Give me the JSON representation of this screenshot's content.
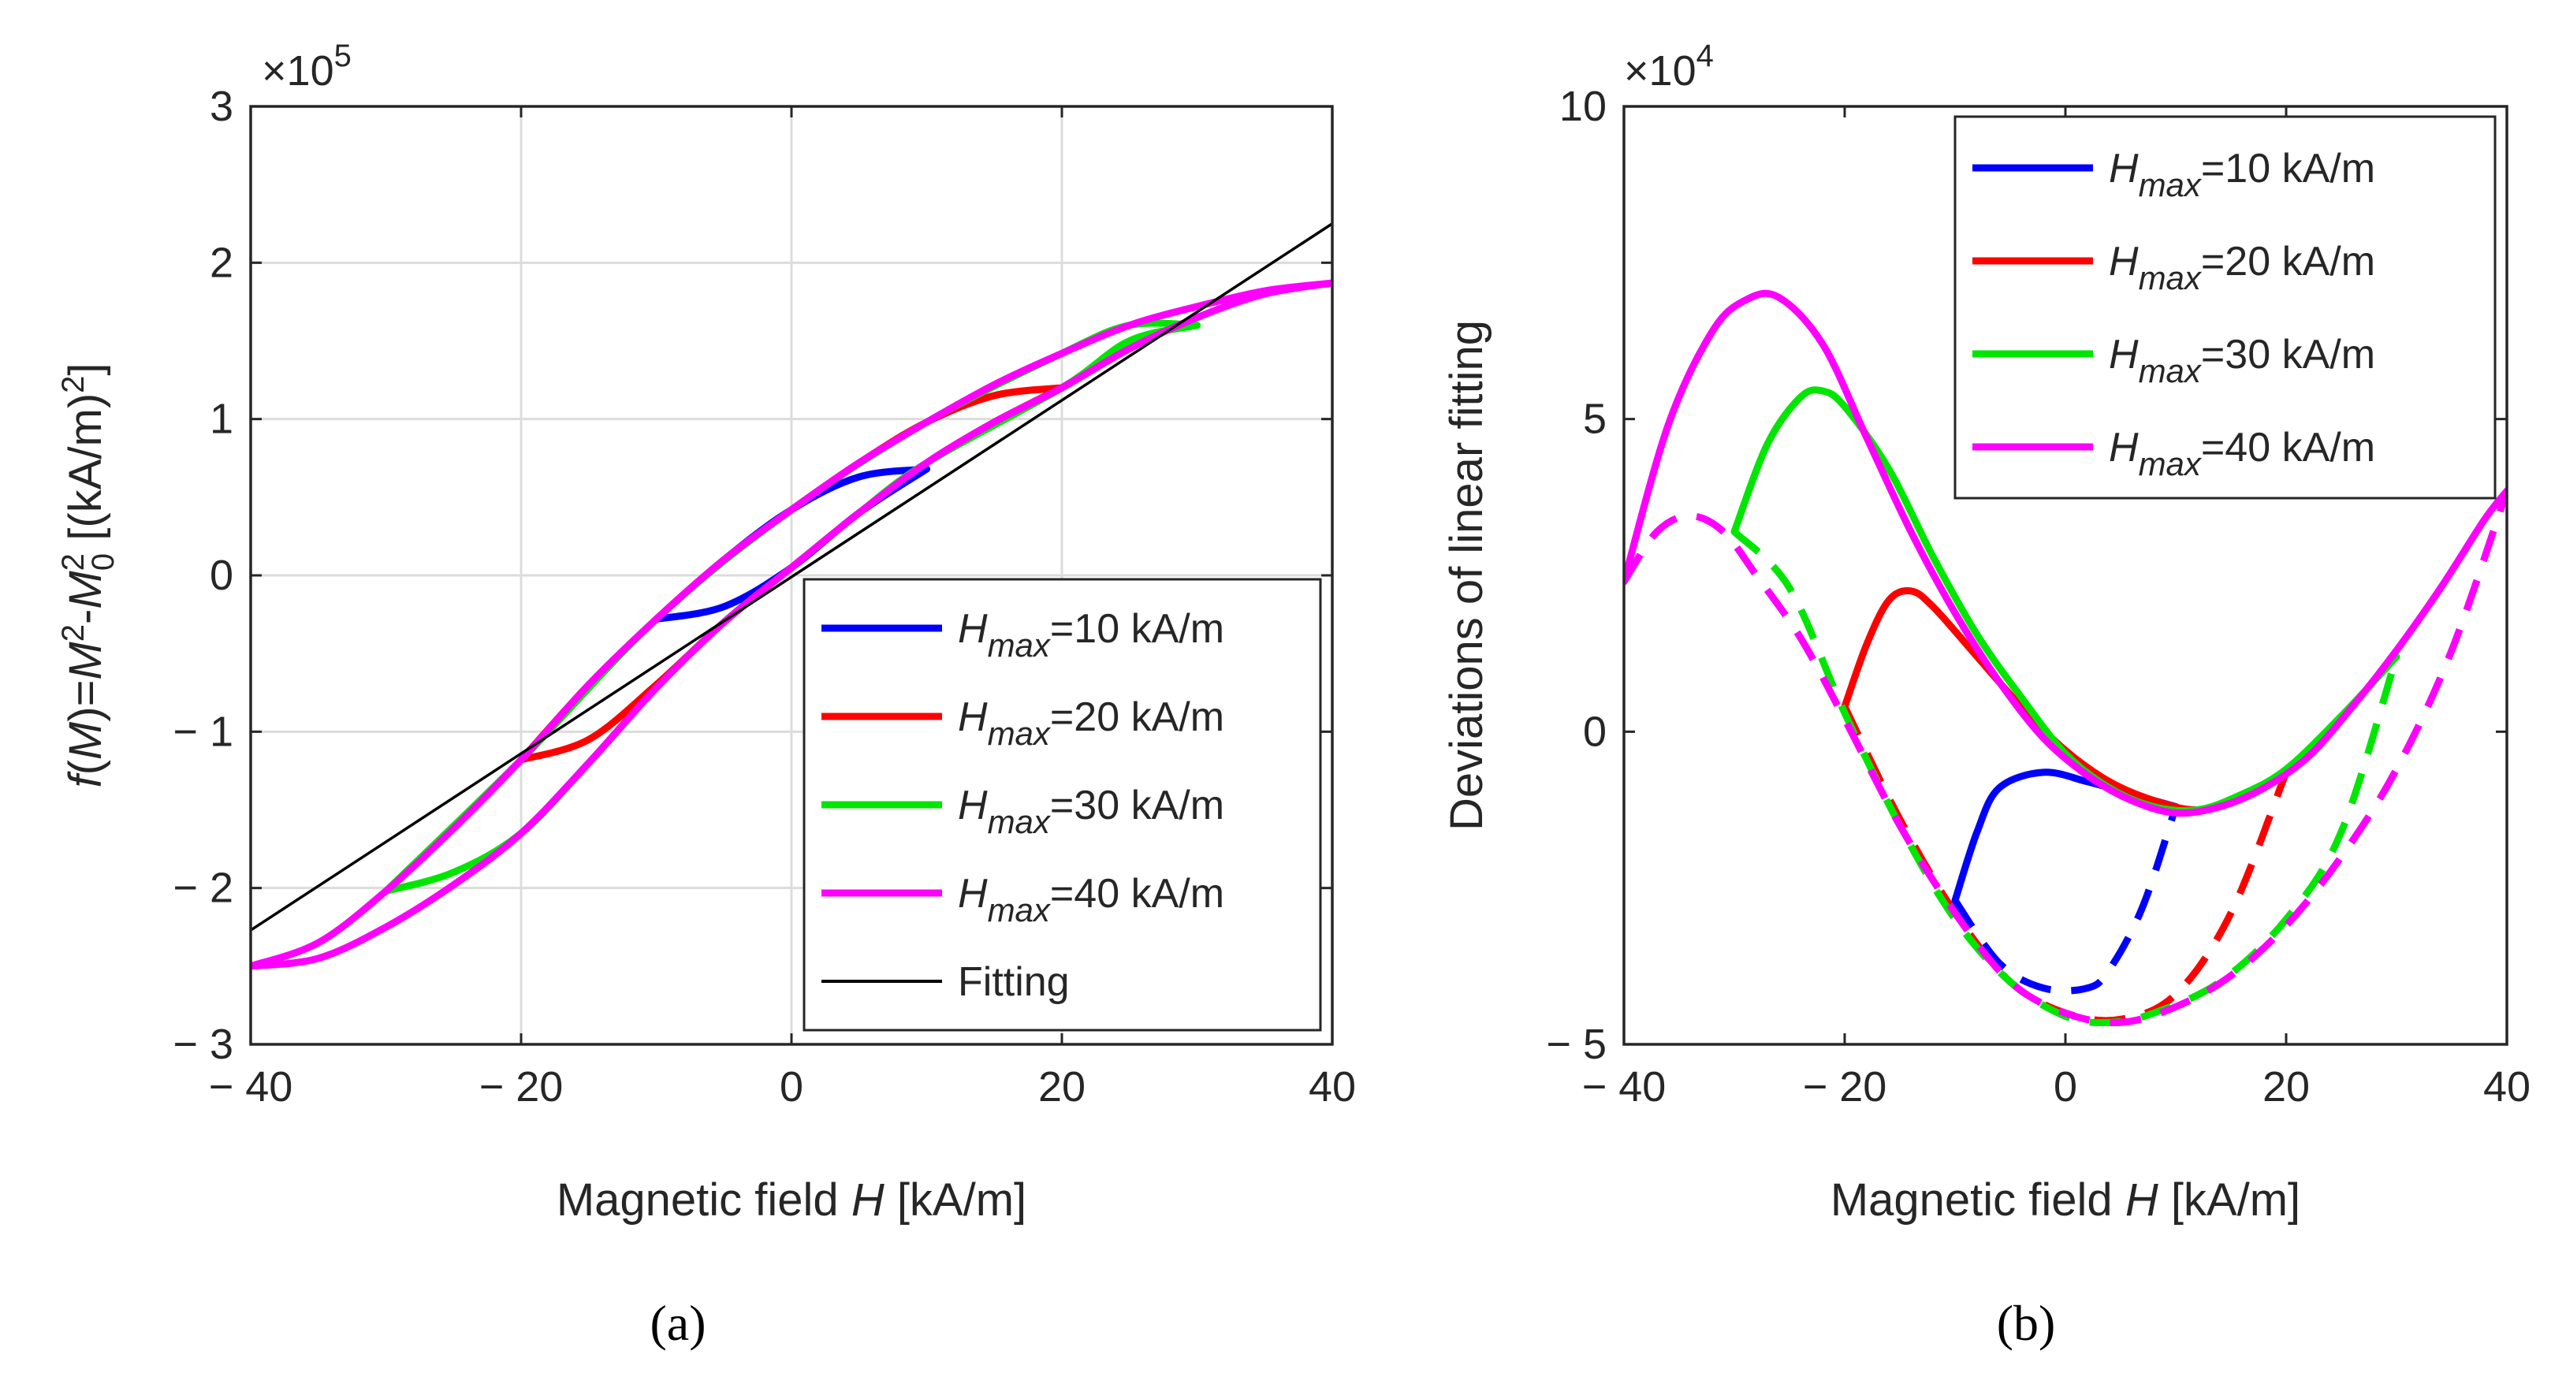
{
  "chart_data": [
    {
      "panel": "(a)",
      "type": "line",
      "xlabel": "Magnetic field H [kA/m]",
      "xlabel_parts": [
        "Magnetic field ",
        "H",
        " [kA/m]"
      ],
      "ylabel": "f(M)=M²-M₀² [(kA/m)²]",
      "xlim": [
        -40,
        40
      ],
      "ylim": [
        -3,
        3
      ],
      "y_scale_factor": "×10^5",
      "y_exponent_base": "×10",
      "y_exponent": "5",
      "xticks": [
        -40,
        -20,
        0,
        20,
        40
      ],
      "xtick_labels": [
        "− 40",
        "− 20",
        "0",
        "20",
        "40"
      ],
      "yticks": [
        -3,
        -2,
        -1,
        0,
        1,
        2,
        3
      ],
      "ytick_labels": [
        "− 3",
        "− 2",
        "− 1",
        "0",
        "1",
        "2",
        "3"
      ],
      "grid": true,
      "legend_position": "bottom-right",
      "series": [
        {
          "name": "Hmax=10 kA/m",
          "name_parts": [
            "H",
            "max",
            "=10 kA/m"
          ],
          "color": "#0000ff",
          "ascending": [
            [
              -10,
              -0.28
            ],
            [
              -5,
              -0.2
            ],
            [
              0,
              0.05
            ],
            [
              5,
              0.4
            ],
            [
              10,
              0.68
            ]
          ],
          "descending": [
            [
              10,
              0.68
            ],
            [
              5,
              0.63
            ],
            [
              0,
              0.42
            ],
            [
              -5,
              0.1
            ],
            [
              -10,
              -0.28
            ]
          ]
        },
        {
          "name": "Hmax=20 kA/m",
          "name_parts": [
            "H",
            "max",
            "=20 kA/m"
          ],
          "color": "#ff0000",
          "ascending": [
            [
              -20,
              -1.18
            ],
            [
              -15,
              -1.05
            ],
            [
              -10,
              -0.7
            ],
            [
              -5,
              -0.3
            ],
            [
              0,
              0.05
            ],
            [
              5,
              0.4
            ],
            [
              10,
              0.72
            ],
            [
              15,
              0.98
            ],
            [
              20,
              1.2
            ]
          ],
          "descending": [
            [
              20,
              1.2
            ],
            [
              15,
              1.15
            ],
            [
              10,
              0.98
            ],
            [
              5,
              0.72
            ],
            [
              0,
              0.42
            ],
            [
              -5,
              0.1
            ],
            [
              -10,
              -0.28
            ],
            [
              -15,
              -0.7
            ],
            [
              -20,
              -1.18
            ]
          ]
        },
        {
          "name": "Hmax=30 kA/m",
          "name_parts": [
            "H",
            "max",
            "=30 kA/m"
          ],
          "color": "#00e600",
          "ascending": [
            [
              -30,
              -2.02
            ],
            [
              -25,
              -1.9
            ],
            [
              -20,
              -1.65
            ],
            [
              -15,
              -1.2
            ],
            [
              -10,
              -0.72
            ],
            [
              -5,
              -0.3
            ],
            [
              0,
              0.05
            ],
            [
              5,
              0.4
            ],
            [
              10,
              0.72
            ],
            [
              20,
              1.2
            ],
            [
              25,
              1.5
            ],
            [
              30,
              1.6
            ]
          ],
          "descending": [
            [
              30,
              1.6
            ],
            [
              25,
              1.6
            ],
            [
              20,
              1.42
            ],
            [
              10,
              0.98
            ],
            [
              0,
              0.42
            ],
            [
              -10,
              -0.28
            ],
            [
              -20,
              -1.18
            ],
            [
              -30,
              -2.02
            ]
          ]
        },
        {
          "name": "Hmax=40 kA/m",
          "name_parts": [
            "H",
            "max",
            "=40 kA/m"
          ],
          "color": "#ff00ff",
          "ascending": [
            [
              -40,
              -2.5
            ],
            [
              -35,
              -2.45
            ],
            [
              -30,
              -2.25
            ],
            [
              -25,
              -1.98
            ],
            [
              -20,
              -1.65
            ],
            [
              -15,
              -1.2
            ],
            [
              -10,
              -0.72
            ],
            [
              -5,
              -0.3
            ],
            [
              0,
              0.05
            ],
            [
              5,
              0.4
            ],
            [
              10,
              0.72
            ],
            [
              15,
              0.98
            ],
            [
              20,
              1.2
            ],
            [
              25,
              1.45
            ],
            [
              30,
              1.65
            ],
            [
              35,
              1.8
            ],
            [
              40,
              1.87
            ]
          ],
          "descending": [
            [
              40,
              1.87
            ],
            [
              35,
              1.82
            ],
            [
              30,
              1.72
            ],
            [
              25,
              1.6
            ],
            [
              20,
              1.42
            ],
            [
              15,
              1.22
            ],
            [
              10,
              0.98
            ],
            [
              5,
              0.72
            ],
            [
              0,
              0.42
            ],
            [
              -5,
              0.1
            ],
            [
              -10,
              -0.28
            ],
            [
              -15,
              -0.7
            ],
            [
              -20,
              -1.18
            ],
            [
              -25,
              -1.62
            ],
            [
              -30,
              -2.02
            ],
            [
              -35,
              -2.35
            ],
            [
              -40,
              -2.5
            ]
          ]
        },
        {
          "name": "Fitting",
          "color": "#000000",
          "line": [
            [
              -40,
              -2.27
            ],
            [
              40,
              2.25
            ]
          ]
        }
      ]
    },
    {
      "panel": "(b)",
      "type": "line",
      "xlabel": "Magnetic field H [kA/m]",
      "xlabel_parts": [
        "Magnetic field ",
        "H",
        " [kA/m]"
      ],
      "ylabel": "Deviations of linear fitting",
      "xlim": [
        -40,
        40
      ],
      "ylim": [
        -5,
        10
      ],
      "y_scale_factor": "×10^4",
      "y_exponent_base": "×10",
      "y_exponent": "4",
      "xticks": [
        -40,
        -20,
        0,
        20,
        40
      ],
      "xtick_labels": [
        "− 40",
        "− 20",
        "0",
        "20",
        "40"
      ],
      "yticks": [
        -5,
        0,
        5,
        10
      ],
      "ytick_labels": [
        "− 5",
        "0",
        "5",
        "10"
      ],
      "grid": false,
      "legend_position": "top-right",
      "series": [
        {
          "name": "Hmax=10 kA/m",
          "name_parts": [
            "H",
            "max",
            "=10 kA/m"
          ],
          "color": "#0000ff",
          "solid": [
            [
              -10,
              -2.7
            ],
            [
              -8,
              -1.6
            ],
            [
              -6,
              -0.9
            ],
            [
              -2,
              -0.65
            ],
            [
              2,
              -0.8
            ],
            [
              6,
              -1.0
            ],
            [
              10,
              -1.2
            ]
          ],
          "dashed": [
            [
              -10,
              -2.7
            ],
            [
              -6,
              -3.7
            ],
            [
              -2,
              -4.1
            ],
            [
              2,
              -4.1
            ],
            [
              4,
              -3.8
            ],
            [
              7,
              -2.8
            ],
            [
              10,
              -1.2
            ]
          ]
        },
        {
          "name": "Hmax=20 kA/m",
          "name_parts": [
            "H",
            "max",
            "=20 kA/m"
          ],
          "color": "#ff0000",
          "solid": [
            [
              -20,
              0.4
            ],
            [
              -18,
              1.4
            ],
            [
              -16,
              2.1
            ],
            [
              -14,
              2.25
            ],
            [
              -12,
              2.0
            ],
            [
              -8,
              1.2
            ],
            [
              -4,
              0.4
            ],
            [
              0,
              -0.3
            ],
            [
              4,
              -0.8
            ],
            [
              8,
              -1.1
            ],
            [
              12,
              -1.25
            ],
            [
              16,
              -1.05
            ],
            [
              20,
              -0.65
            ]
          ],
          "dashed": [
            [
              -20,
              0.4
            ],
            [
              -15,
              -1.4
            ],
            [
              -10,
              -2.9
            ],
            [
              -5,
              -4.0
            ],
            [
              0,
              -4.5
            ],
            [
              5,
              -4.6
            ],
            [
              10,
              -4.2
            ],
            [
              15,
              -2.9
            ],
            [
              20,
              -0.65
            ]
          ]
        },
        {
          "name": "Hmax=30 kA/m",
          "name_parts": [
            "H",
            "max",
            "=30 kA/m"
          ],
          "color": "#00e600",
          "solid": [
            [
              -30,
              3.2
            ],
            [
              -27,
              4.6
            ],
            [
              -24,
              5.35
            ],
            [
              -22,
              5.45
            ],
            [
              -20,
              5.2
            ],
            [
              -16,
              4.2
            ],
            [
              -12,
              2.8
            ],
            [
              -8,
              1.55
            ],
            [
              -4,
              0.55
            ],
            [
              0,
              -0.35
            ],
            [
              4,
              -0.9
            ],
            [
              8,
              -1.2
            ],
            [
              12,
              -1.25
            ],
            [
              16,
              -1.0
            ],
            [
              20,
              -0.6
            ],
            [
              25,
              0.25
            ],
            [
              30,
              1.2
            ]
          ],
          "dashed": [
            [
              -30,
              3.2
            ],
            [
              -25,
              2.3
            ],
            [
              -20,
              0.3
            ],
            [
              -15,
              -1.5
            ],
            [
              -10,
              -3.0
            ],
            [
              -5,
              -4.0
            ],
            [
              0,
              -4.55
            ],
            [
              4,
              -4.65
            ],
            [
              8,
              -4.5
            ],
            [
              14,
              -4.0
            ],
            [
              20,
              -3.0
            ],
            [
              25,
              -1.6
            ],
            [
              30,
              1.2
            ]
          ]
        },
        {
          "name": "Hmax=40 kA/m",
          "name_parts": [
            "H",
            "max",
            "=40 kA/m"
          ],
          "color": "#ff00ff",
          "solid": [
            [
              -40,
              2.4
            ],
            [
              -36,
              4.9
            ],
            [
              -32,
              6.4
            ],
            [
              -29,
              6.9
            ],
            [
              -26,
              6.95
            ],
            [
              -22,
              6.2
            ],
            [
              -18,
              4.7
            ],
            [
              -14,
              3.2
            ],
            [
              -10,
              1.9
            ],
            [
              -6,
              0.8
            ],
            [
              -2,
              -0.1
            ],
            [
              2,
              -0.7
            ],
            [
              6,
              -1.1
            ],
            [
              10,
              -1.3
            ],
            [
              14,
              -1.2
            ],
            [
              18,
              -0.9
            ],
            [
              22,
              -0.4
            ],
            [
              26,
              0.4
            ],
            [
              30,
              1.3
            ],
            [
              34,
              2.3
            ],
            [
              38,
              3.4
            ],
            [
              40,
              3.85
            ]
          ],
          "dashed": [
            [
              -40,
              2.4
            ],
            [
              -37,
              3.2
            ],
            [
              -34,
              3.45
            ],
            [
              -31,
              3.2
            ],
            [
              -28,
              2.5
            ],
            [
              -24,
              1.5
            ],
            [
              -20,
              0.2
            ],
            [
              -15,
              -1.5
            ],
            [
              -10,
              -2.9
            ],
            [
              -5,
              -4.0
            ],
            [
              0,
              -4.5
            ],
            [
              5,
              -4.65
            ],
            [
              10,
              -4.4
            ],
            [
              15,
              -3.9
            ],
            [
              20,
              -3.1
            ],
            [
              25,
              -2.0
            ],
            [
              30,
              -0.6
            ],
            [
              35,
              1.3
            ],
            [
              40,
              3.85
            ]
          ]
        }
      ]
    }
  ]
}
